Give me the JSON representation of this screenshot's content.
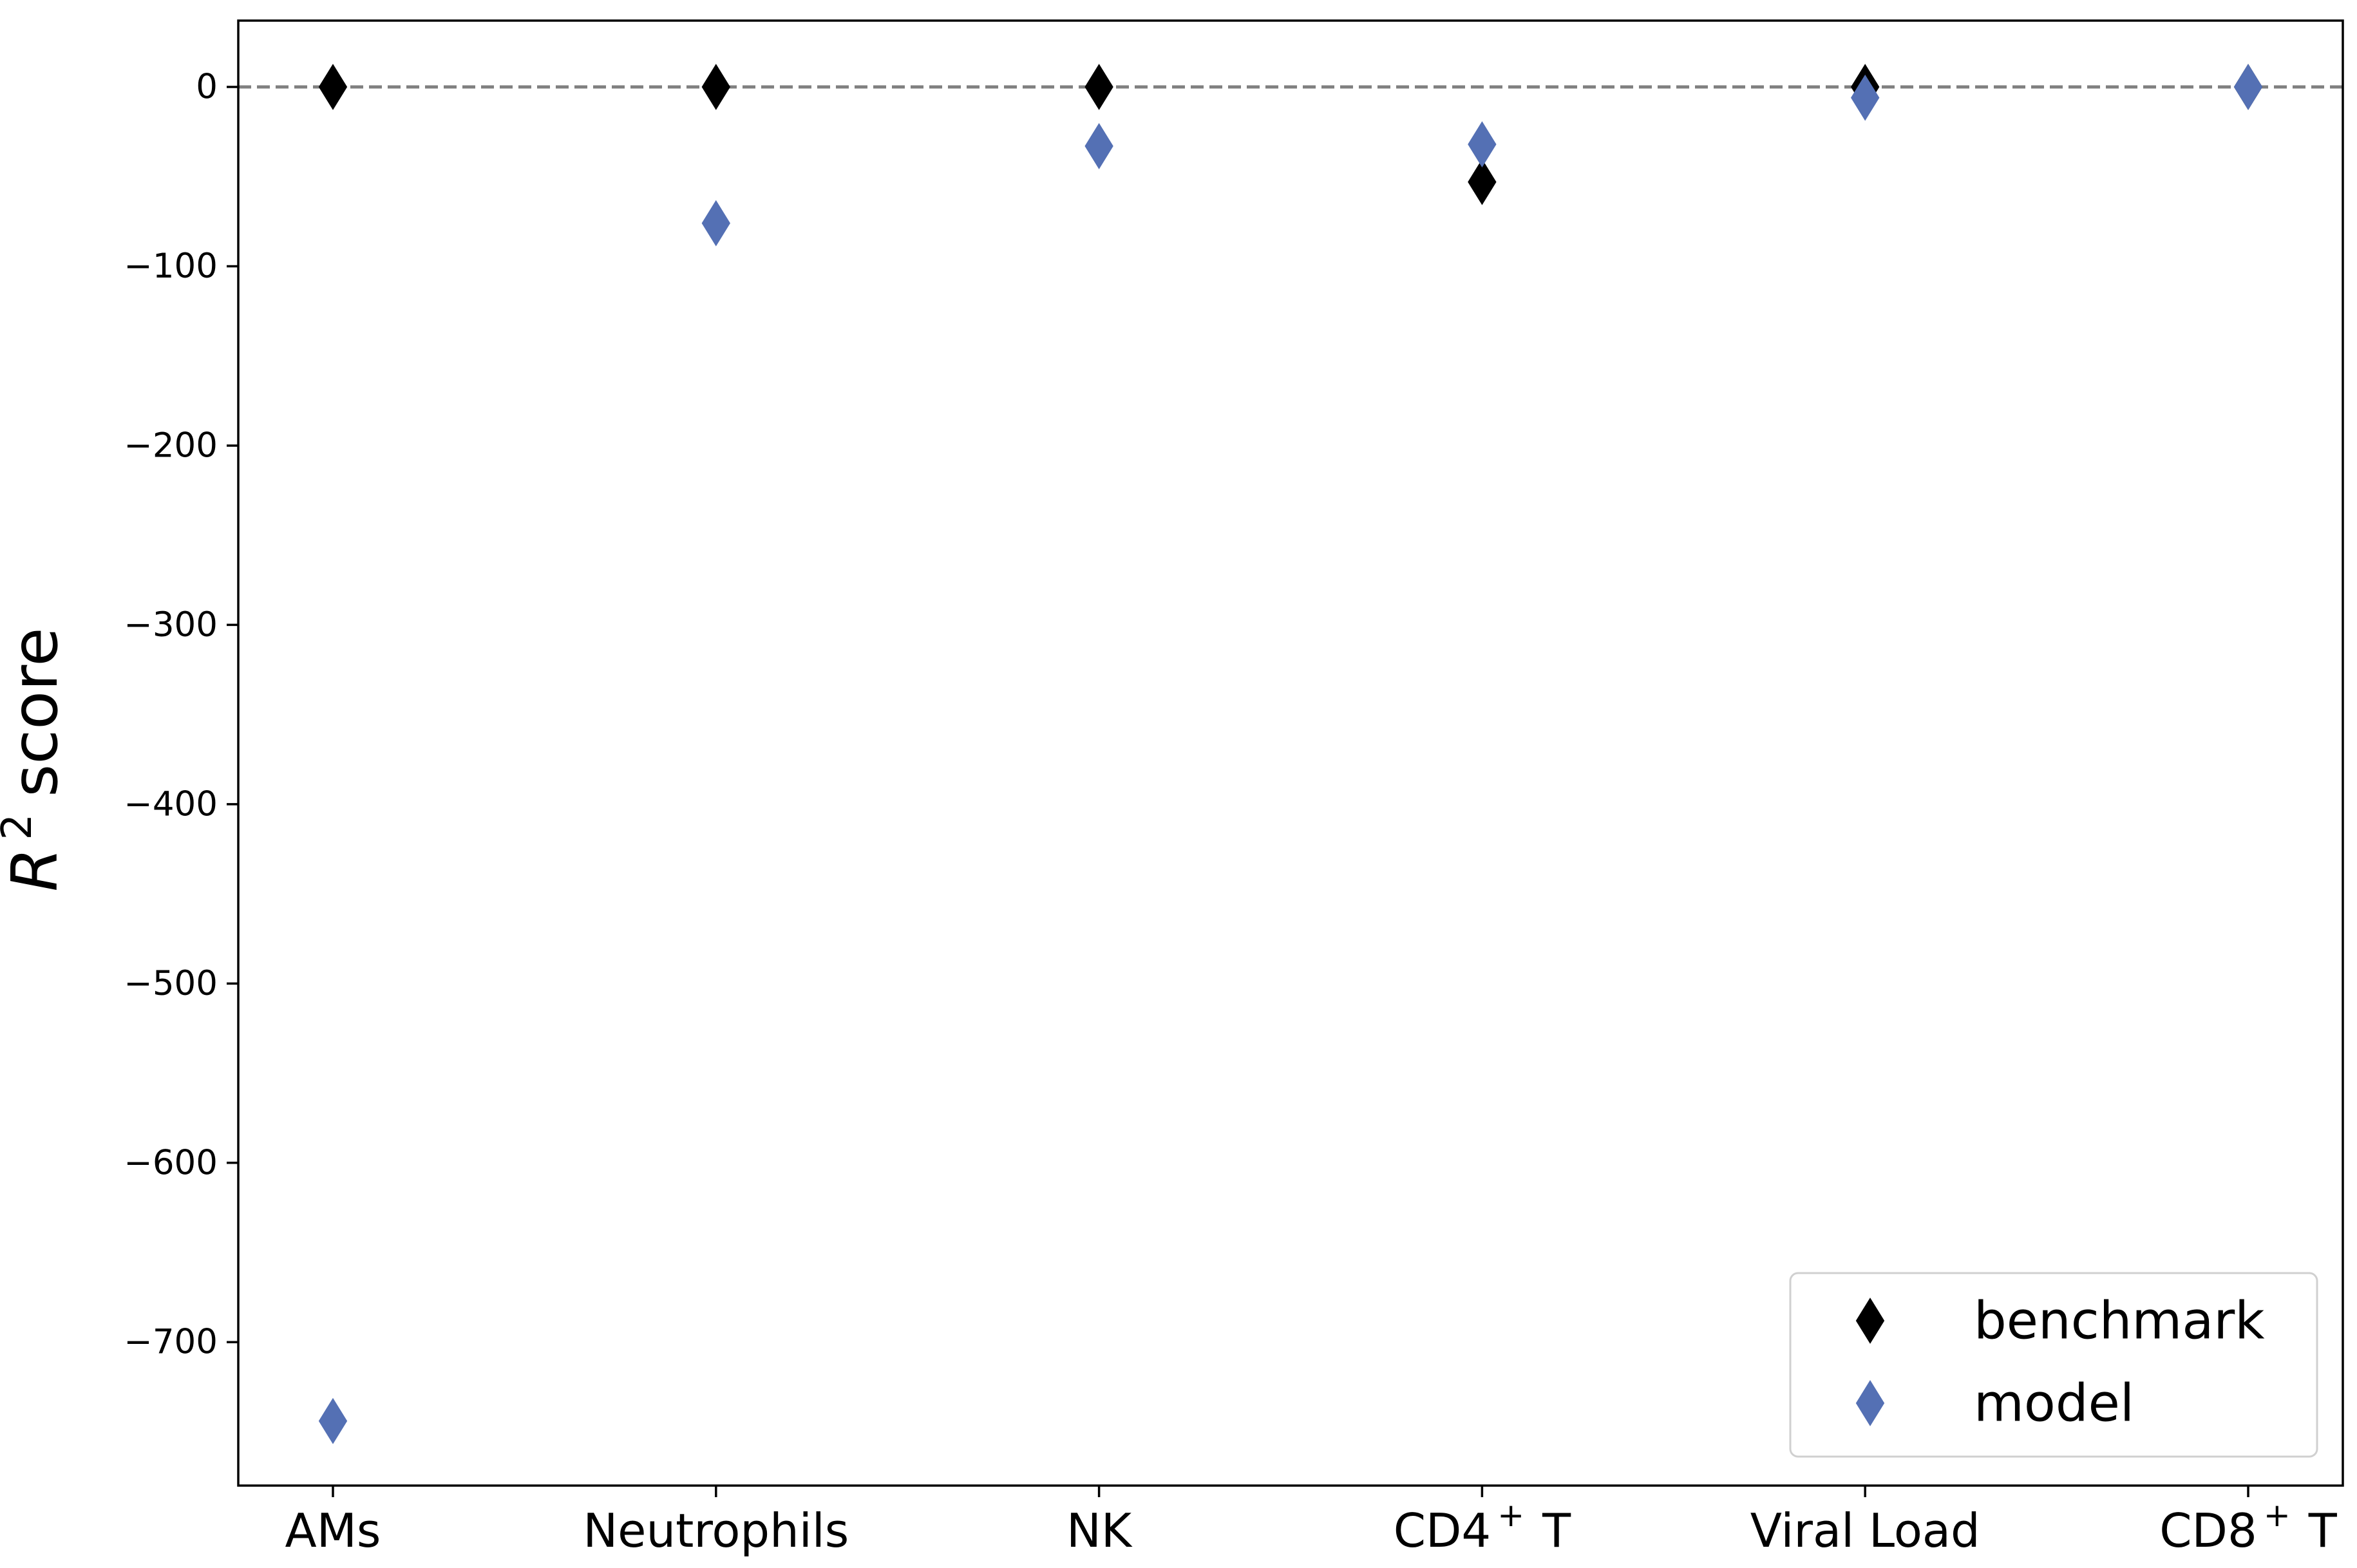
{
  "chart_data": {
    "type": "scatter",
    "marker": "thin-diamond",
    "title": "",
    "xlabel": "",
    "ylabel": {
      "symbol": "R",
      "superscript": "2",
      "text": "score"
    },
    "categories": [
      {
        "base": "AMs",
        "sup": ""
      },
      {
        "base": "Neutrophils",
        "sup": ""
      },
      {
        "base": "NK",
        "sup": ""
      },
      {
        "base": "CD4",
        "sup": "+",
        "suffix": "T"
      },
      {
        "base": "Viral Load",
        "sup": ""
      },
      {
        "base": "CD8",
        "sup": "+",
        "suffix": "T"
      }
    ],
    "series": [
      {
        "name": "benchmark",
        "color": "#000000",
        "values": [
          0,
          0,
          0,
          -53,
          0,
          0
        ]
      },
      {
        "name": "model",
        "color": "#5470b4",
        "values": [
          -744,
          -76,
          -33,
          -32,
          -6,
          0
        ]
      }
    ],
    "ylim": [
      -780,
      37
    ],
    "yticks": [
      0,
      -100,
      -200,
      -300,
      -400,
      -500,
      -600,
      -700
    ],
    "ytick_labels": [
      "0",
      "−100",
      "−200",
      "−300",
      "−400",
      "−500",
      "−600",
      "−700"
    ],
    "reference_line": {
      "y": 0,
      "style": "dashed",
      "color": "#808080"
    },
    "grid": false,
    "legend": {
      "position": "lower-right",
      "entries": [
        "benchmark",
        "model"
      ]
    }
  }
}
